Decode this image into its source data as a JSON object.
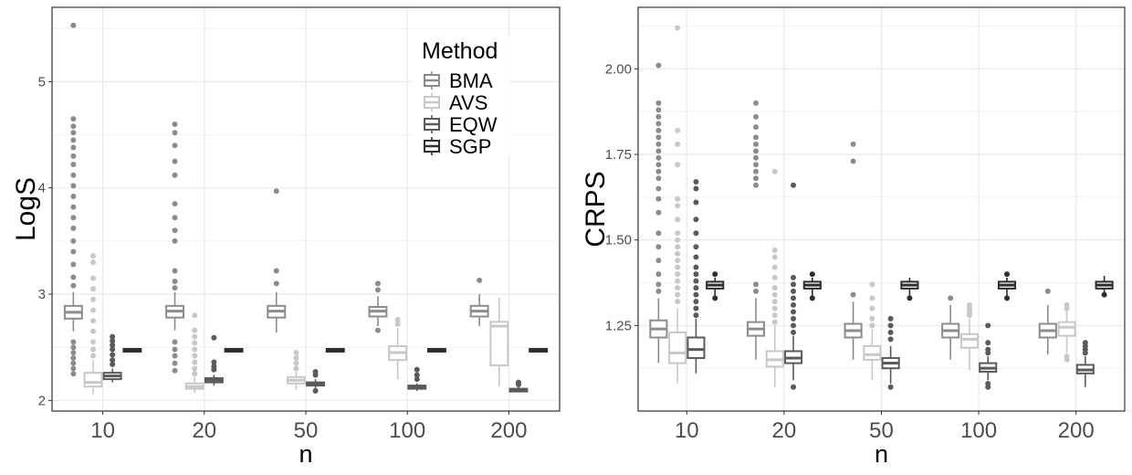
{
  "legend": {
    "title": "Method",
    "entries": [
      "BMA",
      "AVS",
      "EQW",
      "SGP"
    ]
  },
  "colors": {
    "BMA": "#8c8c8c",
    "AVS": "#c8c8c8",
    "EQW": "#5a5a5a",
    "SGP": "#2e2e2e",
    "grid": "#ebebeb",
    "panel_border": "#333333"
  },
  "chart_data": [
    {
      "type": "boxplot",
      "title": "",
      "xlabel": "n",
      "ylabel": "LogS",
      "categories": [
        "10",
        "20",
        "50",
        "100",
        "200"
      ],
      "ylim": [
        1.9,
        5.7
      ],
      "yticks": [
        2,
        3,
        4,
        5
      ],
      "ytick_labels": [
        "2",
        "3",
        "4",
        "5"
      ],
      "legend_position": "top-right",
      "series": [
        {
          "name": "BMA",
          "boxes": [
            {
              "q1": 2.77,
              "median": 2.83,
              "q3": 2.89,
              "wlo": 2.65,
              "whi": 3.02,
              "outliers": [
                5.53,
                4.65,
                4.58,
                4.52,
                4.45,
                4.38,
                4.3,
                4.22,
                4.12,
                4.02,
                3.92,
                3.82,
                3.72,
                3.62,
                3.5,
                3.4,
                3.28,
                3.16,
                3.08,
                2.55,
                2.5,
                2.45,
                2.4,
                2.35,
                2.3,
                2.25
              ]
            },
            {
              "q1": 2.78,
              "median": 2.84,
              "q3": 2.89,
              "wlo": 2.66,
              "whi": 3.02,
              "outliers": [
                4.6,
                4.52,
                4.4,
                4.25,
                4.12,
                3.85,
                3.72,
                3.6,
                3.5,
                3.22,
                3.12,
                3.06,
                2.55,
                2.48,
                2.42,
                2.35,
                2.28
              ]
            },
            {
              "q1": 2.78,
              "median": 2.84,
              "q3": 2.89,
              "wlo": 2.64,
              "whi": 3.02,
              "outliers": [
                3.97,
                3.22,
                3.1
              ]
            },
            {
              "q1": 2.79,
              "median": 2.84,
              "q3": 2.88,
              "wlo": 2.7,
              "whi": 2.98,
              "outliers": [
                3.1,
                3.04,
                2.66
              ]
            },
            {
              "q1": 2.79,
              "median": 2.84,
              "q3": 2.89,
              "wlo": 2.7,
              "whi": 3.0,
              "outliers": [
                3.13
              ]
            }
          ]
        },
        {
          "name": "AVS",
          "boxes": [
            {
              "q1": 2.13,
              "median": 2.17,
              "q3": 2.26,
              "wlo": 2.06,
              "whi": 2.38,
              "outliers": [
                3.36,
                3.3,
                3.15,
                3.05,
                2.95,
                2.85,
                2.75,
                2.65,
                2.55,
                2.48,
                2.42
              ]
            },
            {
              "q1": 2.11,
              "median": 2.13,
              "q3": 2.16,
              "wlo": 2.07,
              "whi": 2.22,
              "outliers": [
                2.8,
                2.66,
                2.6,
                2.54,
                2.48,
                2.42,
                2.36,
                2.3,
                2.25
              ]
            },
            {
              "q1": 2.16,
              "median": 2.19,
              "q3": 2.22,
              "wlo": 2.1,
              "whi": 2.27,
              "outliers": [
                2.45,
                2.4,
                2.35,
                2.3
              ]
            },
            {
              "q1": 2.38,
              "median": 2.45,
              "q3": 2.51,
              "wlo": 2.2,
              "whi": 2.68,
              "outliers": [
                2.76,
                2.72
              ]
            },
            {
              "q1": 2.33,
              "median": 2.7,
              "q3": 2.74,
              "wlo": 2.13,
              "whi": 2.97,
              "outliers": []
            }
          ]
        },
        {
          "name": "EQW",
          "boxes": [
            {
              "q1": 2.2,
              "median": 2.23,
              "q3": 2.26,
              "wlo": 2.17,
              "whi": 2.3,
              "outliers": [
                2.6,
                2.56,
                2.52,
                2.48,
                2.43,
                2.38,
                2.34
              ]
            },
            {
              "q1": 2.17,
              "median": 2.19,
              "q3": 2.21,
              "wlo": 2.14,
              "whi": 2.24,
              "outliers": [
                2.59,
                2.36,
                2.32,
                2.29
              ]
            },
            {
              "q1": 2.14,
              "median": 2.15,
              "q3": 2.17,
              "wlo": 2.1,
              "whi": 2.2,
              "outliers": [
                2.27,
                2.24,
                2.09
              ]
            },
            {
              "q1": 2.11,
              "median": 2.12,
              "q3": 2.14,
              "wlo": 2.09,
              "whi": 2.16,
              "outliers": [
                2.29,
                2.24,
                2.2
              ]
            },
            {
              "q1": 2.09,
              "median": 2.1,
              "q3": 2.11,
              "wlo": 2.08,
              "whi": 2.13,
              "outliers": [
                2.17,
                2.15
              ]
            }
          ]
        },
        {
          "name": "SGP",
          "boxes": [
            {
              "q1": 2.475,
              "median": 2.48,
              "q3": 2.485,
              "wlo": 2.47,
              "whi": 2.49,
              "outliers": []
            },
            {
              "q1": 2.475,
              "median": 2.48,
              "q3": 2.485,
              "wlo": 2.47,
              "whi": 2.49,
              "outliers": []
            },
            {
              "q1": 2.475,
              "median": 2.48,
              "q3": 2.485,
              "wlo": 2.47,
              "whi": 2.49,
              "outliers": []
            },
            {
              "q1": 2.475,
              "median": 2.48,
              "q3": 2.485,
              "wlo": 2.47,
              "whi": 2.49,
              "outliers": []
            },
            {
              "q1": 2.475,
              "median": 2.48,
              "q3": 2.485,
              "wlo": 2.47,
              "whi": 2.49,
              "outliers": []
            }
          ]
        }
      ]
    },
    {
      "type": "boxplot",
      "title": "",
      "xlabel": "n",
      "ylabel": "CRPS",
      "categories": [
        "10",
        "20",
        "50",
        "100",
        "200"
      ],
      "ylim": [
        1.0,
        2.18
      ],
      "yticks": [
        1.25,
        1.5,
        1.75,
        2.0
      ],
      "ytick_labels": [
        "1.25",
        "1.50",
        "1.75",
        "2.00"
      ],
      "series": [
        {
          "name": "BMA",
          "boxes": [
            {
              "q1": 1.215,
              "median": 1.24,
              "q3": 1.265,
              "wlo": 1.14,
              "whi": 1.33,
              "outliers": [
                2.01,
                1.9,
                1.88,
                1.86,
                1.84,
                1.82,
                1.8,
                1.78,
                1.76,
                1.74,
                1.72,
                1.7,
                1.68,
                1.65,
                1.62,
                1.58,
                1.52,
                1.48,
                1.44,
                1.4,
                1.37,
                1.35
              ]
            },
            {
              "q1": 1.22,
              "median": 1.24,
              "q3": 1.26,
              "wlo": 1.15,
              "whi": 1.33,
              "outliers": [
                1.9,
                1.86,
                1.83,
                1.8,
                1.78,
                1.76,
                1.74,
                1.72,
                1.7,
                1.68,
                1.66,
                1.37,
                1.35
              ]
            },
            {
              "q1": 1.215,
              "median": 1.235,
              "q3": 1.255,
              "wlo": 1.15,
              "whi": 1.32,
              "outliers": [
                1.78,
                1.73,
                1.34
              ]
            },
            {
              "q1": 1.215,
              "median": 1.235,
              "q3": 1.255,
              "wlo": 1.15,
              "whi": 1.31,
              "outliers": [
                1.33
              ]
            },
            {
              "q1": 1.215,
              "median": 1.235,
              "q3": 1.255,
              "wlo": 1.165,
              "whi": 1.31,
              "outliers": [
                1.35
              ]
            }
          ]
        },
        {
          "name": "AVS",
          "boxes": [
            {
              "q1": 1.14,
              "median": 1.17,
              "q3": 1.23,
              "wlo": 1.08,
              "whi": 1.3,
              "outliers": [
                2.12,
                1.82,
                1.78,
                1.72,
                1.62,
                1.6,
                1.56,
                1.52,
                1.5,
                1.48,
                1.46,
                1.44,
                1.42,
                1.4,
                1.38,
                1.36,
                1.34,
                1.32
              ]
            },
            {
              "q1": 1.13,
              "median": 1.15,
              "q3": 1.175,
              "wlo": 1.07,
              "whi": 1.25,
              "outliers": [
                1.7,
                1.47,
                1.45,
                1.42,
                1.39,
                1.36,
                1.34,
                1.32,
                1.3,
                1.28,
                1.26
              ]
            },
            {
              "q1": 1.15,
              "median": 1.165,
              "q3": 1.19,
              "wlo": 1.09,
              "whi": 1.24,
              "outliers": [
                1.37,
                1.33,
                1.3,
                1.27,
                1.25
              ]
            },
            {
              "q1": 1.185,
              "median": 1.21,
              "q3": 1.225,
              "wlo": 1.12,
              "whi": 1.27,
              "outliers": [
                1.31,
                1.3,
                1.29,
                1.28
              ]
            },
            {
              "q1": 1.22,
              "median": 1.245,
              "q3": 1.26,
              "wlo": 1.17,
              "whi": 1.3,
              "outliers": [
                1.31,
                1.3,
                1.15,
                1.16
              ]
            }
          ]
        },
        {
          "name": "EQW",
          "boxes": [
            {
              "q1": 1.155,
              "median": 1.18,
              "q3": 1.215,
              "wlo": 1.11,
              "whi": 1.27,
              "outliers": [
                1.67,
                1.65,
                1.61,
                1.56,
                1.52,
                1.48,
                1.45,
                1.42,
                1.4,
                1.38,
                1.36,
                1.34,
                1.32,
                1.3,
                1.28
              ]
            },
            {
              "q1": 1.14,
              "median": 1.155,
              "q3": 1.175,
              "wlo": 1.09,
              "whi": 1.22,
              "outliers": [
                1.66,
                1.39,
                1.37,
                1.35,
                1.33,
                1.31,
                1.29,
                1.27,
                1.25,
                1.23,
                1.07
              ]
            },
            {
              "q1": 1.125,
              "median": 1.14,
              "q3": 1.155,
              "wlo": 1.08,
              "whi": 1.19,
              "outliers": [
                1.27,
                1.25,
                1.23,
                1.21,
                1.07
              ]
            },
            {
              "q1": 1.115,
              "median": 1.125,
              "q3": 1.14,
              "wlo": 1.09,
              "whi": 1.16,
              "outliers": [
                1.25,
                1.2,
                1.18,
                1.17,
                1.08,
                1.07
              ]
            },
            {
              "q1": 1.11,
              "median": 1.12,
              "q3": 1.135,
              "wlo": 1.07,
              "whi": 1.16,
              "outliers": [
                1.2,
                1.19,
                1.18,
                1.17
              ]
            }
          ]
        },
        {
          "name": "SGP",
          "boxes": [
            {
              "q1": 1.358,
              "median": 1.368,
              "q3": 1.378,
              "wlo": 1.335,
              "whi": 1.39,
              "outliers": [
                1.4,
                1.33
              ]
            },
            {
              "q1": 1.358,
              "median": 1.368,
              "q3": 1.378,
              "wlo": 1.335,
              "whi": 1.39,
              "outliers": [
                1.4,
                1.33
              ]
            },
            {
              "q1": 1.358,
              "median": 1.368,
              "q3": 1.378,
              "wlo": 1.335,
              "whi": 1.39,
              "outliers": [
                1.33
              ]
            },
            {
              "q1": 1.358,
              "median": 1.368,
              "q3": 1.378,
              "wlo": 1.335,
              "whi": 1.39,
              "outliers": [
                1.4,
                1.33
              ]
            },
            {
              "q1": 1.358,
              "median": 1.368,
              "q3": 1.378,
              "wlo": 1.335,
              "whi": 1.395,
              "outliers": [
                1.34
              ]
            }
          ]
        }
      ]
    }
  ]
}
